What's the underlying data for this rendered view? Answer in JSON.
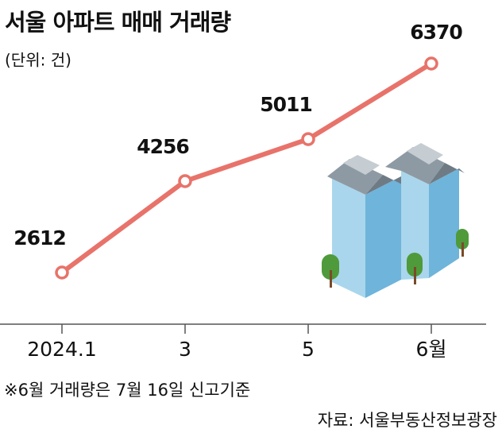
{
  "chart_data": {
    "type": "line",
    "title": "서울 아파트 매매 거래량",
    "subtitle": "(단위: 건)",
    "categories": [
      "2024.1",
      "3",
      "5",
      "6월"
    ],
    "values": [
      2612,
      4256,
      5011,
      6370
    ],
    "color": "#e8736a",
    "note": "※6월 거래량은 7월 16일 신고기준",
    "source": "자료: 서울부동산정보광장"
  }
}
